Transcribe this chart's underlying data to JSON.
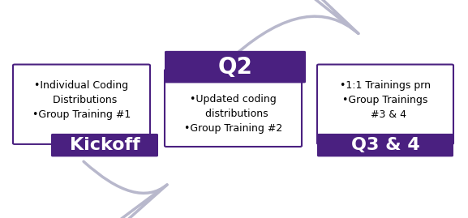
{
  "bg_color": "#ffffff",
  "purple": "#4a2080",
  "gray_arrow": "#b8b8cc",
  "boxes": [
    {
      "id": "kickoff",
      "label": "Kickoff",
      "text": "•Individual Coding\n  Distributions\n•Group Training #1",
      "label_pos": "bottom"
    },
    {
      "id": "q2",
      "label": "Q2",
      "text": "•Updated coding\n  distributions\n•Group Training #2",
      "label_pos": "top"
    },
    {
      "id": "q34",
      "label": "Q3 & 4",
      "text": "•1:1 Trainings prn\n•Group Trainings\n  #3 & 4",
      "label_pos": "bottom"
    }
  ],
  "font_label_size": 16,
  "font_text_size": 9.0,
  "label_fontsize_q2": 20
}
